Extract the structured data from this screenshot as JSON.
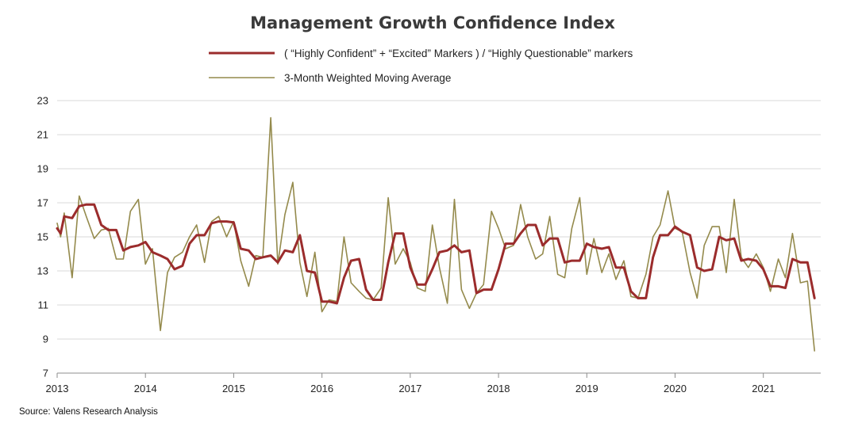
{
  "chart_data": {
    "type": "line",
    "title": "Management Growth Confidence Index",
    "source": "Source: Valens Research Analysis",
    "ylim": [
      7,
      23
    ],
    "yticks": [
      7,
      9,
      11,
      13,
      15,
      17,
      19,
      21,
      23
    ],
    "xlim": [
      2013.0,
      2021.65
    ],
    "xticks": [
      "2013",
      "2014",
      "2015",
      "2016",
      "2017",
      "2018",
      "2019",
      "2020",
      "2021"
    ],
    "xtick_values": [
      2013,
      2014,
      2015,
      2016,
      2017,
      2018,
      2019,
      2020,
      2021
    ],
    "grid": "horizontal",
    "legend_position": "top-center",
    "colors": {
      "main": "#9b2c2c",
      "average": "#948a4c"
    },
    "series": [
      {
        "name": "( “Highly Confident” + “Excited” Markers ) / “Highly Questionable” markers",
        "role": "main",
        "points": [
          [
            2013.0,
            15.5
          ],
          [
            2013.04,
            15.2
          ],
          [
            2013.08,
            16.2
          ],
          [
            2013.17,
            16.1
          ],
          [
            2013.25,
            16.8
          ],
          [
            2013.33,
            16.9
          ],
          [
            2013.42,
            16.9
          ],
          [
            2013.5,
            15.7
          ],
          [
            2013.58,
            15.4
          ],
          [
            2013.67,
            15.4
          ],
          [
            2013.75,
            14.2
          ],
          [
            2013.83,
            14.4
          ],
          [
            2013.92,
            14.5
          ],
          [
            2014.0,
            14.7
          ],
          [
            2014.08,
            14.1
          ],
          [
            2014.17,
            13.9
          ],
          [
            2014.25,
            13.7
          ],
          [
            2014.33,
            13.1
          ],
          [
            2014.42,
            13.3
          ],
          [
            2014.5,
            14.6
          ],
          [
            2014.58,
            15.1
          ],
          [
            2014.67,
            15.1
          ],
          [
            2014.75,
            15.8
          ],
          [
            2014.83,
            15.9
          ],
          [
            2014.92,
            15.9
          ],
          [
            2015.0,
            15.85
          ],
          [
            2015.08,
            14.3
          ],
          [
            2015.17,
            14.2
          ],
          [
            2015.25,
            13.7
          ],
          [
            2015.33,
            13.8
          ],
          [
            2015.42,
            13.9
          ],
          [
            2015.5,
            13.5
          ],
          [
            2015.58,
            14.2
          ],
          [
            2015.67,
            14.1
          ],
          [
            2015.75,
            15.1
          ],
          [
            2015.83,
            13.0
          ],
          [
            2015.92,
            12.9
          ],
          [
            2016.0,
            11.2
          ],
          [
            2016.08,
            11.2
          ],
          [
            2016.17,
            11.1
          ],
          [
            2016.25,
            12.6
          ],
          [
            2016.33,
            13.6
          ],
          [
            2016.42,
            13.7
          ],
          [
            2016.5,
            11.9
          ],
          [
            2016.58,
            11.3
          ],
          [
            2016.67,
            11.3
          ],
          [
            2016.75,
            13.5
          ],
          [
            2016.83,
            15.2
          ],
          [
            2016.92,
            15.2
          ],
          [
            2017.0,
            13.2
          ],
          [
            2017.08,
            12.2
          ],
          [
            2017.17,
            12.2
          ],
          [
            2017.25,
            13.1
          ],
          [
            2017.33,
            14.1
          ],
          [
            2017.42,
            14.2
          ],
          [
            2017.5,
            14.5
          ],
          [
            2017.58,
            14.1
          ],
          [
            2017.67,
            14.2
          ],
          [
            2017.75,
            11.7
          ],
          [
            2017.83,
            11.9
          ],
          [
            2017.92,
            11.9
          ],
          [
            2018.0,
            13.1
          ],
          [
            2018.08,
            14.6
          ],
          [
            2018.17,
            14.6
          ],
          [
            2018.25,
            15.2
          ],
          [
            2018.33,
            15.7
          ],
          [
            2018.42,
            15.7
          ],
          [
            2018.5,
            14.5
          ],
          [
            2018.58,
            14.9
          ],
          [
            2018.67,
            14.9
          ],
          [
            2018.75,
            13.5
          ],
          [
            2018.83,
            13.6
          ],
          [
            2018.92,
            13.6
          ],
          [
            2019.0,
            14.6
          ],
          [
            2019.08,
            14.4
          ],
          [
            2019.17,
            14.3
          ],
          [
            2019.25,
            14.4
          ],
          [
            2019.33,
            13.2
          ],
          [
            2019.42,
            13.2
          ],
          [
            2019.5,
            11.8
          ],
          [
            2019.58,
            11.4
          ],
          [
            2019.67,
            11.4
          ],
          [
            2019.75,
            13.8
          ],
          [
            2019.83,
            15.1
          ],
          [
            2019.92,
            15.1
          ],
          [
            2020.0,
            15.6
          ],
          [
            2020.08,
            15.3
          ],
          [
            2020.17,
            15.1
          ],
          [
            2020.25,
            13.2
          ],
          [
            2020.33,
            13.0
          ],
          [
            2020.42,
            13.1
          ],
          [
            2020.5,
            15.0
          ],
          [
            2020.58,
            14.8
          ],
          [
            2020.67,
            14.9
          ],
          [
            2020.75,
            13.6
          ],
          [
            2020.83,
            13.7
          ],
          [
            2020.92,
            13.6
          ],
          [
            2021.0,
            13.1
          ],
          [
            2021.08,
            12.1
          ],
          [
            2021.17,
            12.1
          ],
          [
            2021.25,
            12.0
          ],
          [
            2021.33,
            13.7
          ],
          [
            2021.42,
            13.5
          ],
          [
            2021.5,
            13.5
          ],
          [
            2021.58,
            11.4
          ]
        ]
      },
      {
        "name": "3-Month Weighted Moving Average",
        "role": "average",
        "points": [
          [
            2013.0,
            15.8
          ],
          [
            2013.04,
            15.0
          ],
          [
            2013.08,
            16.4
          ],
          [
            2013.17,
            12.6
          ],
          [
            2013.25,
            17.4
          ],
          [
            2013.33,
            16.2
          ],
          [
            2013.42,
            14.9
          ],
          [
            2013.5,
            15.4
          ],
          [
            2013.58,
            15.5
          ],
          [
            2013.67,
            13.7
          ],
          [
            2013.75,
            13.7
          ],
          [
            2013.83,
            16.5
          ],
          [
            2013.92,
            17.2
          ],
          [
            2014.0,
            13.4
          ],
          [
            2014.08,
            14.3
          ],
          [
            2014.17,
            9.5
          ],
          [
            2014.25,
            12.9
          ],
          [
            2014.33,
            13.8
          ],
          [
            2014.42,
            14.1
          ],
          [
            2014.5,
            15.0
          ],
          [
            2014.58,
            15.7
          ],
          [
            2014.67,
            13.5
          ],
          [
            2014.75,
            15.9
          ],
          [
            2014.83,
            16.2
          ],
          [
            2014.92,
            15.0
          ],
          [
            2015.0,
            15.9
          ],
          [
            2015.08,
            13.6
          ],
          [
            2015.17,
            12.1
          ],
          [
            2015.25,
            13.9
          ],
          [
            2015.33,
            13.8
          ],
          [
            2015.42,
            22.0
          ],
          [
            2015.5,
            13.4
          ],
          [
            2015.58,
            16.3
          ],
          [
            2015.67,
            18.2
          ],
          [
            2015.75,
            13.5
          ],
          [
            2015.83,
            11.5
          ],
          [
            2015.92,
            14.1
          ],
          [
            2016.0,
            10.6
          ],
          [
            2016.08,
            11.3
          ],
          [
            2016.17,
            11.2
          ],
          [
            2016.25,
            15.0
          ],
          [
            2016.33,
            12.3
          ],
          [
            2016.42,
            11.8
          ],
          [
            2016.5,
            11.4
          ],
          [
            2016.58,
            11.3
          ],
          [
            2016.67,
            12.0
          ],
          [
            2016.75,
            17.3
          ],
          [
            2016.83,
            13.4
          ],
          [
            2016.92,
            14.3
          ],
          [
            2017.0,
            13.5
          ],
          [
            2017.08,
            12.0
          ],
          [
            2017.17,
            11.8
          ],
          [
            2017.25,
            15.7
          ],
          [
            2017.33,
            13.2
          ],
          [
            2017.42,
            11.1
          ],
          [
            2017.5,
            17.2
          ],
          [
            2017.58,
            11.9
          ],
          [
            2017.67,
            10.8
          ],
          [
            2017.75,
            11.7
          ],
          [
            2017.83,
            12.2
          ],
          [
            2017.92,
            16.5
          ],
          [
            2018.0,
            15.5
          ],
          [
            2018.08,
            14.3
          ],
          [
            2018.17,
            14.5
          ],
          [
            2018.25,
            16.9
          ],
          [
            2018.33,
            15.0
          ],
          [
            2018.42,
            13.7
          ],
          [
            2018.5,
            14.0
          ],
          [
            2018.58,
            16.2
          ],
          [
            2018.67,
            12.8
          ],
          [
            2018.75,
            12.6
          ],
          [
            2018.83,
            15.5
          ],
          [
            2018.92,
            17.3
          ],
          [
            2019.0,
            12.8
          ],
          [
            2019.08,
            14.9
          ],
          [
            2019.17,
            12.9
          ],
          [
            2019.25,
            14.0
          ],
          [
            2019.33,
            12.5
          ],
          [
            2019.42,
            13.6
          ],
          [
            2019.5,
            11.5
          ],
          [
            2019.58,
            11.4
          ],
          [
            2019.67,
            12.8
          ],
          [
            2019.75,
            15.0
          ],
          [
            2019.83,
            15.7
          ],
          [
            2019.92,
            17.7
          ],
          [
            2020.0,
            15.5
          ],
          [
            2020.08,
            15.3
          ],
          [
            2020.17,
            12.9
          ],
          [
            2020.25,
            11.4
          ],
          [
            2020.33,
            14.5
          ],
          [
            2020.42,
            15.6
          ],
          [
            2020.5,
            15.6
          ],
          [
            2020.58,
            12.9
          ],
          [
            2020.67,
            17.2
          ],
          [
            2020.75,
            13.8
          ],
          [
            2020.83,
            13.2
          ],
          [
            2020.92,
            14.0
          ],
          [
            2021.0,
            13.2
          ],
          [
            2021.08,
            11.8
          ],
          [
            2021.17,
            13.7
          ],
          [
            2021.25,
            12.6
          ],
          [
            2021.33,
            15.2
          ],
          [
            2021.42,
            12.3
          ],
          [
            2021.5,
            12.4
          ],
          [
            2021.58,
            8.3
          ]
        ]
      }
    ]
  }
}
